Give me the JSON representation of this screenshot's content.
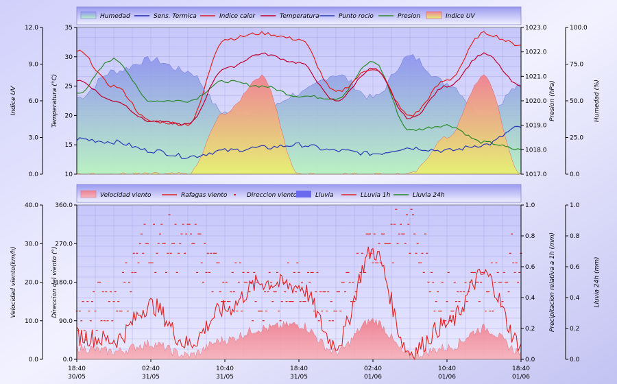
{
  "colors": {
    "background_outer": "#b9b9f5",
    "plot_top": "#c7c7ff",
    "grid": "#9a9ae0",
    "humedad": "#8f96ef",
    "humedad_low": "#b8f0c2",
    "sens_termica": "#2222bb",
    "indice_calor": "#e02020",
    "temperatura": "#c00030",
    "punto_rocio": "#2a3ab8",
    "presion": "#2a8a2a",
    "indice_uv_top": "#f08090",
    "indice_uv_bottom": "#e8f06a",
    "velocidad": "#f08a98",
    "rafagas": "#e02020",
    "direccion": "#e02020",
    "lluvia": "#6a6aee",
    "lluvia_1h": "#e02020",
    "lluvia_24h": "#228822"
  },
  "top_chart": {
    "legend": [
      "Humedad",
      "Sens. Termica",
      "Indice calor",
      "Temperatura",
      "Punto rocio",
      "Presion",
      "Indice UV"
    ],
    "axis_uv": {
      "title": "Indice UV",
      "ticks": [
        "12.0",
        "9.0",
        "6.0",
        "3.0",
        "0.0"
      ]
    },
    "axis_temp": {
      "title": "Temperatura (°C)",
      "ticks": [
        "35",
        "30",
        "25",
        "20",
        "15",
        "10"
      ]
    },
    "axis_pres": {
      "title": "Presion (hPa)",
      "ticks": [
        "1023.0",
        "1022.0",
        "1021.0",
        "1020.0",
        "1019.0",
        "1018.0",
        "1017.0"
      ]
    },
    "axis_hum": {
      "title": "Humedad (%)",
      "ticks": [
        "100.0",
        "75.0",
        "50.0",
        "25.0",
        "0.0"
      ]
    }
  },
  "bottom_chart": {
    "legend": [
      "Velocidad viento",
      "Rafagas viento",
      "Direccion viento",
      "Lluvia",
      "LLuvia 1h",
      "Lluvia 24h"
    ],
    "axis_vel": {
      "title": "Velocidad viento(km/h)",
      "ticks": [
        "40.0",
        "30.0",
        "20.0",
        "10.0",
        "0.0"
      ]
    },
    "axis_dir": {
      "title": "Direccion del viento (°)",
      "ticks": [
        "360.0",
        "270.0",
        "180.0",
        "90.0",
        "0.0"
      ]
    },
    "axis_1h": {
      "title": "Precipitacion relativa a 1h (mm)",
      "ticks": [
        "1.0",
        "0.8",
        "0.6",
        "0.4",
        "0.2",
        "0.0"
      ]
    },
    "axis_24h": {
      "title": "Lluvia 24h (mm)",
      "ticks": [
        "1.0",
        "0.8",
        "0.6",
        "0.4",
        "0.2",
        "0.0"
      ]
    }
  },
  "x_labels": [
    {
      "time": "18:40",
      "date": "30/05"
    },
    {
      "time": "02:40",
      "date": "31/05"
    },
    {
      "time": "10:40",
      "date": "31/05"
    },
    {
      "time": "18:40",
      "date": "31/05"
    },
    {
      "time": "02:40",
      "date": "01/06"
    },
    {
      "time": "10:40",
      "date": "01/06"
    },
    {
      "time": "18:40",
      "date": "01/06"
    }
  ],
  "chart_data": [
    {
      "type": "line",
      "x": [
        "30/05 18:40",
        "30/05 22:40",
        "31/05 02:40",
        "31/05 06:40",
        "31/05 10:40",
        "31/05 14:40",
        "31/05 18:40",
        "31/05 22:40",
        "01/06 02:40",
        "01/06 06:40",
        "01/06 10:40",
        "01/06 14:40",
        "01/06 18:40"
      ],
      "series": [
        {
          "name": "Humedad",
          "axis": "Humedad (%)",
          "values": [
            52,
            70,
            78,
            70,
            42,
            42,
            55,
            68,
            52,
            80,
            62,
            40,
            60
          ]
        },
        {
          "name": "Sens. Termica",
          "axis": "Temperatura (°C)",
          "values": [
            16,
            15.5,
            14,
            13,
            14,
            14.5,
            15,
            14,
            13.5,
            14.5,
            14,
            15,
            18
          ]
        },
        {
          "name": "Indice calor",
          "axis": "Temperatura (°C)",
          "values": [
            31,
            25,
            19,
            18.5,
            33,
            34,
            33,
            24,
            28,
            20,
            26,
            34,
            32
          ]
        },
        {
          "name": "Temperatura",
          "axis": "Temperatura (°C)",
          "values": [
            26,
            22.5,
            19,
            18.5,
            28,
            30.5,
            29,
            22.5,
            28,
            19.5,
            25,
            30.5,
            25
          ]
        },
        {
          "name": "Punto rocio",
          "axis": "Temperatura (°C)",
          "values": [
            16,
            15.5,
            14,
            13,
            14,
            14.5,
            15,
            14,
            13.5,
            14.5,
            14,
            15,
            18
          ]
        },
        {
          "name": "Presion",
          "axis": "Presion (hPa)",
          "values": [
            1020.3,
            1021.7,
            1020.0,
            1020.0,
            1020.8,
            1020.6,
            1020.2,
            1020.1,
            1021.6,
            1018.8,
            1019.0,
            1018.3,
            1018.0
          ]
        },
        {
          "name": "Indice UV",
          "axis": "Indice UV",
          "values": [
            0,
            0,
            0,
            0,
            5,
            8,
            0,
            0,
            0,
            0,
            3,
            8,
            0
          ]
        }
      ],
      "ylim_uv": [
        0,
        12
      ],
      "ylim_temp": [
        10,
        35
      ],
      "ylim_pres": [
        1017,
        1023
      ],
      "ylim_hum": [
        0,
        100
      ]
    },
    {
      "type": "line",
      "x": [
        "30/05 18:40",
        "30/05 22:40",
        "31/05 02:40",
        "31/05 06:40",
        "31/05 10:40",
        "31/05 14:40",
        "31/05 18:40",
        "31/05 22:40",
        "01/06 02:40",
        "01/06 06:40",
        "01/06 10:40",
        "01/06 14:40",
        "01/06 18:40"
      ],
      "series": [
        {
          "name": "Velocidad viento",
          "axis": "Velocidad viento(km/h)",
          "values": [
            3,
            2,
            4,
            1,
            5,
            8,
            9,
            2,
            10,
            1,
            3,
            8,
            2
          ]
        },
        {
          "name": "Rafagas viento",
          "axis": "Velocidad viento(km/h)",
          "values": [
            6,
            5,
            14,
            4,
            13,
            20,
            19,
            4,
            28,
            2,
            9,
            22,
            4
          ]
        },
        {
          "name": "Direccion viento",
          "axis": "Direccion del viento (°)",
          "values": [
            90,
            140,
            270,
            270,
            180,
            140,
            180,
            120,
            270,
            300,
            140,
            160,
            240
          ]
        },
        {
          "name": "Lluvia",
          "axis": "Precipitacion relativa a 1h (mm)",
          "values": [
            0,
            0,
            0,
            0,
            0,
            0,
            0,
            0,
            0,
            0,
            0,
            0,
            0
          ]
        },
        {
          "name": "LLuvia 1h",
          "axis": "Precipitacion relativa a 1h (mm)",
          "values": [
            0,
            0,
            0,
            0,
            0,
            0,
            0,
            0,
            0,
            0,
            0,
            0,
            0
          ]
        },
        {
          "name": "Lluvia 24h",
          "axis": "Lluvia 24h (mm)",
          "values": [
            0,
            0,
            0,
            0,
            0,
            0,
            0,
            0,
            0,
            0,
            0,
            0,
            0
          ]
        }
      ],
      "ylim_vel": [
        0,
        40
      ],
      "ylim_dir": [
        0,
        360
      ],
      "ylim_1h": [
        0,
        1
      ],
      "ylim_24h": [
        0,
        1
      ]
    }
  ]
}
